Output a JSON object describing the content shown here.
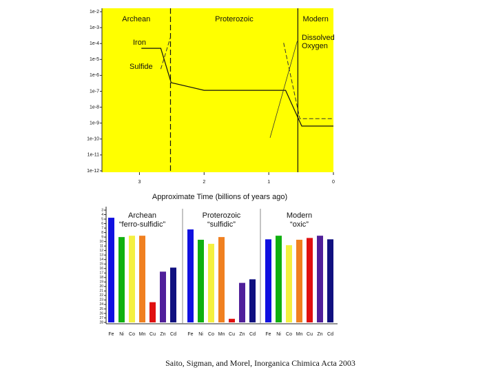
{
  "chart_data": [
    {
      "type": "line",
      "xlabel": "Approximate Time (billions of years ago)",
      "xlim": [
        3.58,
        0
      ],
      "xticks": [
        3,
        2,
        1,
        0
      ],
      "yscale": "log",
      "ylim": [
        1e-12,
        0.01
      ],
      "yticks": [
        {
          "value": 0.01,
          "label": "1e-2"
        },
        {
          "value": 0.001,
          "label": "1e-3"
        },
        {
          "value": 0.0001,
          "label": "1e-4"
        },
        {
          "value": 1e-05,
          "label": "1e-5"
        },
        {
          "value": 1e-06,
          "label": "1e-6"
        },
        {
          "value": 1e-07,
          "label": "1e-7"
        },
        {
          "value": 1e-08,
          "label": "1e-8"
        },
        {
          "value": 1e-09,
          "label": "1e-9"
        },
        {
          "value": 1e-10,
          "label": "1e-10"
        },
        {
          "value": 1e-11,
          "label": "1e-11"
        },
        {
          "value": 1e-12,
          "label": "1e-12"
        }
      ],
      "background": "#ffff00",
      "eras": [
        {
          "name": "Archean",
          "start": 3.58,
          "end": 2.52,
          "dash": false
        },
        {
          "name": "Proterozoic",
          "start": 2.52,
          "end": 0.55,
          "dash": true
        },
        {
          "name": "Modern",
          "start": 0.55,
          "end": 0
        }
      ],
      "series": [
        {
          "name": "Iron",
          "color": "#111111",
          "dash": false,
          "width": 1.2,
          "x": [
            2.97,
            2.67,
            2.51,
            2.0,
            0.74,
            0.49,
            0
          ],
          "values": [
            5e-05,
            5e-05,
            3.5e-07,
            1.15e-07,
            1.15e-07,
            6.5e-10,
            6.5e-10
          ]
        },
        {
          "name": "Sulfide",
          "color": "#333333",
          "dash": true,
          "width": 1,
          "x": [
            2.67,
            2.52,
            null,
            0.77,
            0.52,
            0
          ],
          "values": [
            2.5e-06,
            0.00025,
            null,
            0.00011,
            1.9e-09,
            1.9e-09
          ]
        },
        {
          "name": "Dissolved Oxygen",
          "color": "#333333",
          "dash": false,
          "width": 0.8,
          "x": [
            0.98,
            0.56
          ],
          "values": [
            1.2e-10,
            0.00014
          ]
        }
      ]
    },
    {
      "type": "bar",
      "categories": [
        "Fe",
        "Ni",
        "Co",
        "Mn",
        "Cu",
        "Zn",
        "Cd"
      ],
      "colors": [
        "#1010e0",
        "#10b010",
        "#f4f040",
        "#f08020",
        "#e01010",
        "#50209a",
        "#101080"
      ],
      "ylim": [
        28,
        3
      ],
      "yticks": [
        3,
        4,
        5,
        6,
        7,
        8,
        9,
        10,
        11,
        12,
        13,
        14,
        15,
        16,
        17,
        18,
        19,
        20,
        21,
        22,
        23,
        24,
        25,
        26,
        27,
        28
      ],
      "groups": [
        {
          "name": "Archean",
          "subtitle": "“ferro-sulfidic”",
          "values": [
            4.7,
            9.0,
            8.7,
            8.7,
            23.5,
            16.7,
            15.8
          ]
        },
        {
          "name": "Proterozoic",
          "subtitle": "“sulfidic”",
          "values": [
            7.3,
            9.6,
            10.5,
            9.0,
            27.2,
            19.2,
            18.4
          ]
        },
        {
          "name": "Modern",
          "subtitle": "“oxic”",
          "values": [
            9.5,
            8.7,
            10.8,
            9.6,
            9.2,
            8.7,
            9.5
          ]
        }
      ]
    }
  ],
  "citation": "Saito, Sigman, and Morel, Inorganica Chimica Acta 2003"
}
